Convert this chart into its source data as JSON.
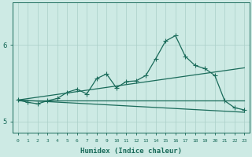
{
  "xlabel": "Humidex (Indice chaleur)",
  "x_values": [
    0,
    1,
    2,
    3,
    4,
    5,
    6,
    7,
    8,
    9,
    10,
    11,
    12,
    13,
    14,
    15,
    16,
    17,
    18,
    19,
    20,
    21,
    22,
    23
  ],
  "line_main": [
    5.28,
    5.25,
    5.23,
    5.27,
    5.3,
    5.38,
    5.42,
    5.36,
    5.56,
    5.62,
    5.44,
    5.52,
    5.53,
    5.6,
    5.82,
    6.05,
    6.12,
    5.85,
    5.73,
    5.69,
    5.6,
    5.27,
    5.18,
    5.15
  ],
  "line_upper": [
    5.28,
    5.7
  ],
  "line_lower": [
    5.28,
    5.12
  ],
  "line_flat": [
    5.27,
    5.27
  ],
  "ylim": [
    4.85,
    6.55
  ],
  "ytick_vals": [
    5.0,
    6.0
  ],
  "ytick_labels": [
    "5",
    "6"
  ],
  "xlim": [
    -0.5,
    23.5
  ],
  "color_main": "#1a6b5a",
  "color_bg": "#cdeae4",
  "color_grid": "#aacfc8",
  "marker_size": 2.5,
  "line_width": 0.9
}
